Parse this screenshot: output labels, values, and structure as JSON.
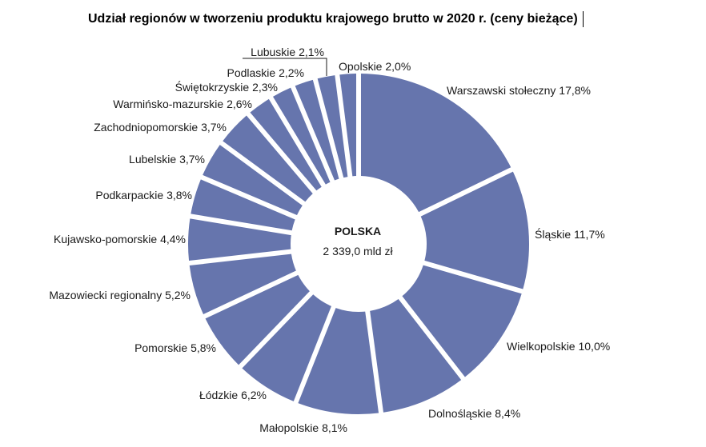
{
  "chart_data": {
    "type": "pie",
    "donut": true,
    "title": "Udział regionów w tworzeniu produktu krajowego brutto w 2020 r. (ceny bieżące)",
    "center_label": "POLSKA",
    "center_value": "2 339,0 mld zł",
    "slice_color": "#6675ad",
    "slices": [
      {
        "label": "Warszawski stołeczny 17,8%",
        "value": 17.8
      },
      {
        "label": "Śląskie 11,7%",
        "value": 11.7
      },
      {
        "label": "Wielkopolskie 10,0%",
        "value": 10.0
      },
      {
        "label": "Dolnośląskie 8,4%",
        "value": 8.4
      },
      {
        "label": "Małopolskie 8,1%",
        "value": 8.1
      },
      {
        "label": "Łódzkie 6,2%",
        "value": 6.2
      },
      {
        "label": "Pomorskie 5,8%",
        "value": 5.8
      },
      {
        "label": "Mazowiecki regionalny 5,2%",
        "value": 5.2
      },
      {
        "label": "Kujawsko-pomorskie 4,4%",
        "value": 4.4
      },
      {
        "label": "Podkarpackie 3,8%",
        "value": 3.8
      },
      {
        "label": "Lubelskie 3,7%",
        "value": 3.7
      },
      {
        "label": "Zachodniopomorskie 3,7%",
        "value": 3.7
      },
      {
        "label": "Warmińsko-mazurskie 2,6%",
        "value": 2.6
      },
      {
        "label": "Świętokrzyskie 2,3%",
        "value": 2.3
      },
      {
        "label": "Podlaskie 2,2%",
        "value": 2.2
      },
      {
        "label": "Lubuskie 2,1%",
        "value": 2.1
      },
      {
        "label": "Opolskie 2,0%",
        "value": 2.0
      }
    ]
  }
}
